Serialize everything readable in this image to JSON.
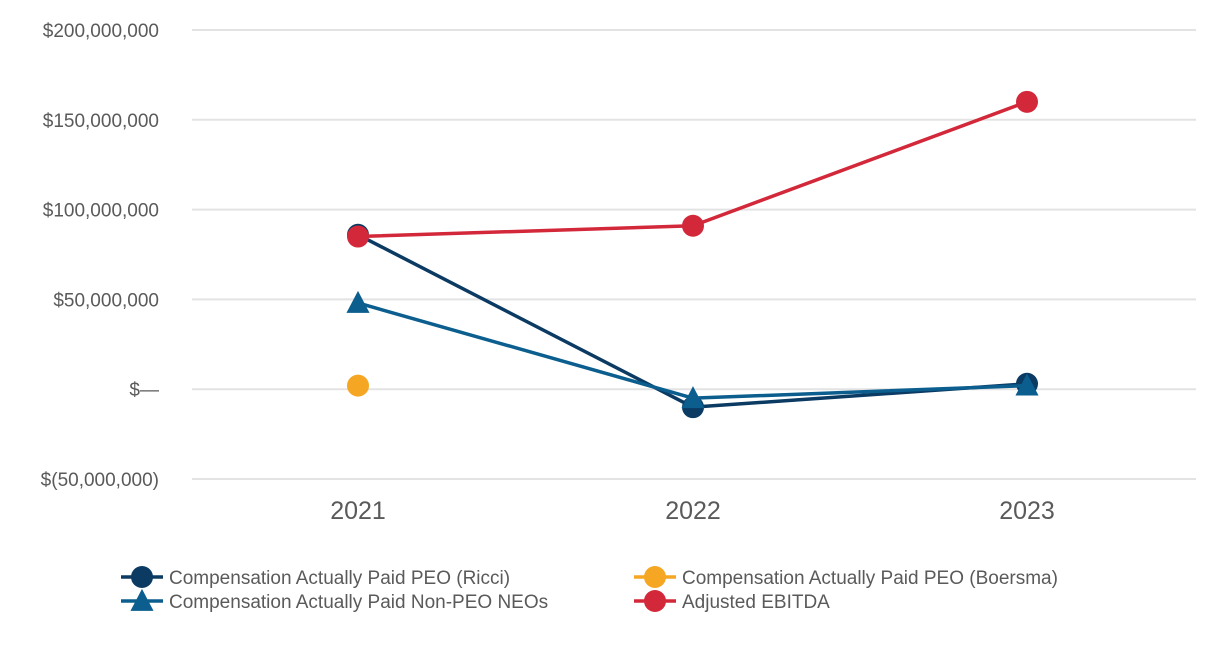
{
  "chart_data": {
    "type": "line",
    "categories": [
      "2021",
      "2022",
      "2023"
    ],
    "ylim": [
      -50000000,
      200000000
    ],
    "yticks": [
      200000000,
      150000000,
      100000000,
      50000000,
      0,
      -50000000
    ],
    "ytick_labels": [
      "$200,000,000",
      "$150,000,000",
      "$100,000,000",
      "$50,000,000",
      "$—",
      "$(50,000,000)"
    ],
    "grid": true,
    "legend_position": "bottom",
    "series": [
      {
        "name": "Compensation Actually Paid PEO (Ricci)",
        "color": "#0b3a63",
        "marker": "circle",
        "values": [
          86000000,
          -10000000,
          3000000
        ]
      },
      {
        "name": "Compensation Actually Paid PEO (Boersma)",
        "color": "#f5a623",
        "marker": "circle",
        "values": [
          2000000,
          null,
          null
        ]
      },
      {
        "name": "Compensation Actually Paid Non-PEO NEOs",
        "color": "#0b5e8e",
        "marker": "triangle",
        "values": [
          48000000,
          -5000000,
          2000000
        ]
      },
      {
        "name": "Adjusted EBITDA",
        "color": "#d3283a",
        "marker": "circle",
        "values": [
          85000000,
          91000000,
          160000000
        ]
      }
    ]
  }
}
